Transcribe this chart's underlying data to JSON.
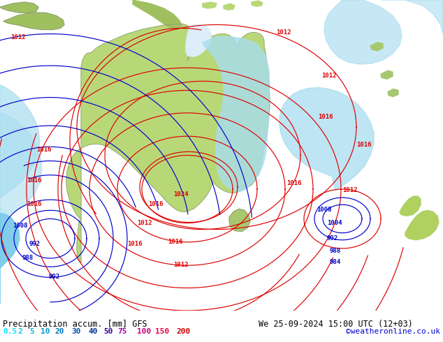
{
  "title_left": "Precipitation accum. [mm] GFS",
  "title_right": "We 25-09-2024 15:00 UTC (12+03)",
  "credit": "©weatheronline.co.uk",
  "legend_values": [
    "0.5",
    "2",
    "5",
    "10",
    "20",
    "30",
    "40",
    "50",
    "75",
    "100",
    "150",
    "200"
  ],
  "legend_colors": [
    "#00e5ff",
    "#00ccee",
    "#00bbdd",
    "#0099cc",
    "#0077bb",
    "#0055aa",
    "#003399",
    "#330099",
    "#990099",
    "#cc0077",
    "#ee0044",
    "#cc0000"
  ],
  "bg_color": "#e8eef2",
  "ocean_color": "#ddeef8",
  "land_color": "#b8d878",
  "land_dark_color": "#a0c060",
  "precip_light": "#a8ddf0",
  "precip_mid": "#70c8e8",
  "precip_dark": "#40b0e0",
  "bottom_bar_color": "#ffffff",
  "font_color": "#000000",
  "label_fontsize": 9,
  "credit_color": "#0000cc",
  "isobar_red": "#dd0000",
  "isobar_blue": "#0000cc",
  "fig_width": 6.34,
  "fig_height": 4.9,
  "dpi": 100
}
